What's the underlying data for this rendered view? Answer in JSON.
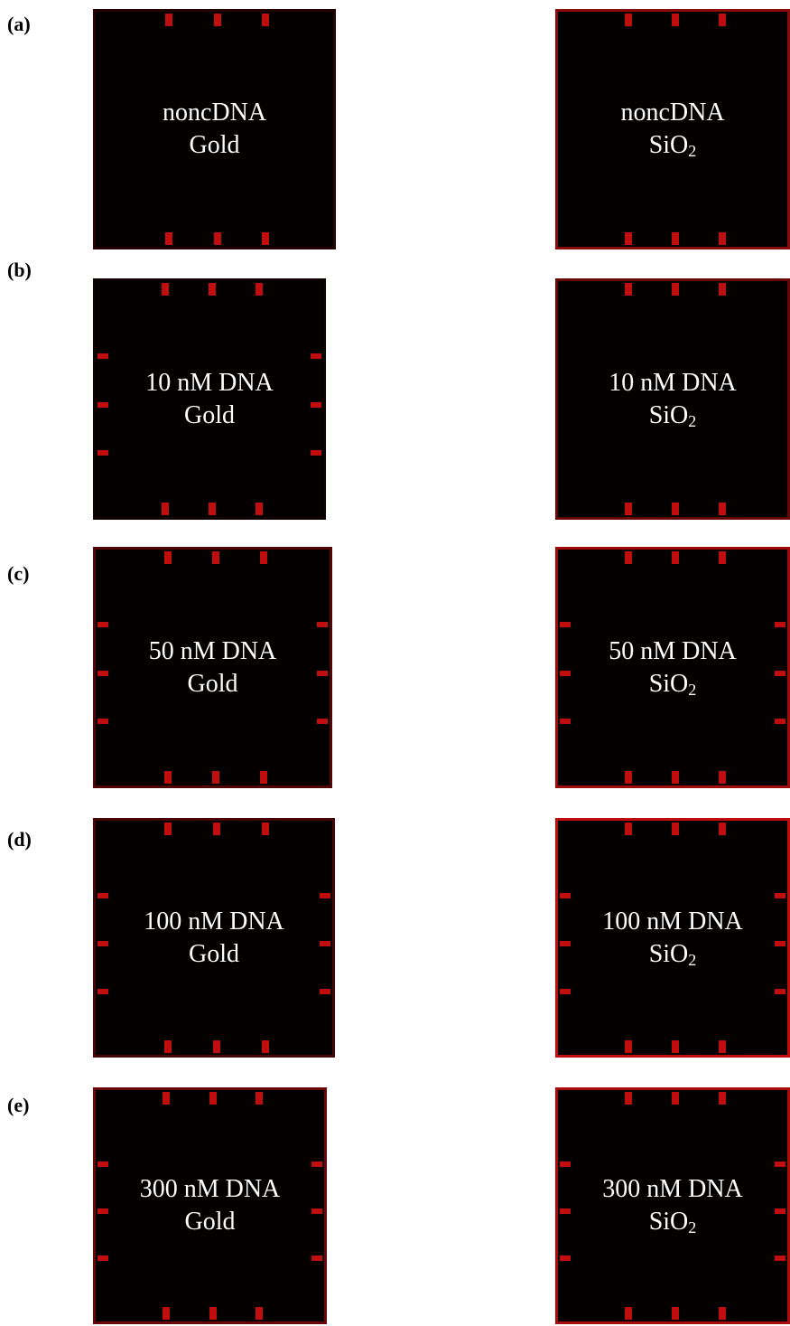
{
  "panels": [
    {
      "label": "(a)",
      "left": {
        "line1": "noncDNA",
        "line2": "Gold"
      },
      "right": {
        "line1": "noncDNA",
        "line2_base": "SiO",
        "line2_sub": "2"
      }
    },
    {
      "label": "(b)",
      "left": {
        "line1": "10 nM DNA",
        "line2": "Gold"
      },
      "right": {
        "line1": "10 nM DNA",
        "line2_base": "SiO",
        "line2_sub": "2"
      }
    },
    {
      "label": "(c)",
      "left": {
        "line1": "50 nM DNA",
        "line2": "Gold"
      },
      "right": {
        "line1": "50 nM DNA",
        "line2_base": "SiO",
        "line2_sub": "2"
      }
    },
    {
      "label": "(d)",
      "left": {
        "line1": "100 nM DNA",
        "line2": "Gold"
      },
      "right": {
        "line1": "100 nM DNA",
        "line2_base": "SiO",
        "line2_sub": "2"
      }
    },
    {
      "label": "(e)",
      "left": {
        "line1": "300 nM DNA",
        "line2": "Gold"
      },
      "right": {
        "line1": "300 nM DNA",
        "line2_base": "SiO",
        "line2_sub": "2"
      }
    }
  ]
}
